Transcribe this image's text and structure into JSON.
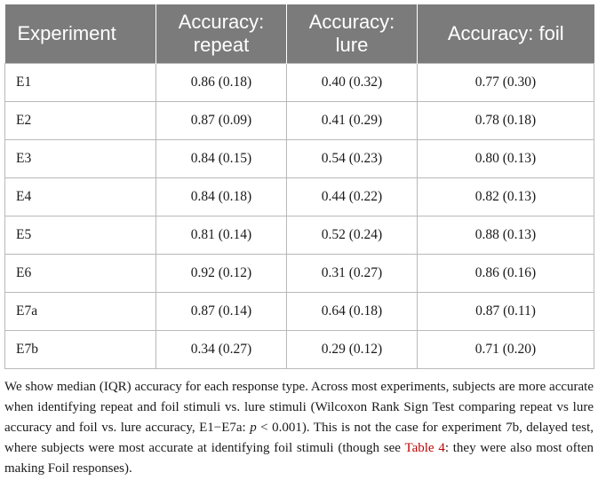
{
  "table": {
    "headers": [
      "Experiment",
      "Accuracy: repeat",
      "Accuracy: lure",
      "Accuracy: foil"
    ],
    "header_lines": [
      [
        "Experiment"
      ],
      [
        "Accuracy:",
        "repeat"
      ],
      [
        "Accuracy:",
        "lure"
      ],
      [
        "Accuracy: foil"
      ]
    ],
    "rows": [
      [
        "E1",
        "0.86 (0.18)",
        "0.40 (0.32)",
        "0.77 (0.30)"
      ],
      [
        "E2",
        "0.87 (0.09)",
        "0.41 (0.29)",
        "0.78 (0.18)"
      ],
      [
        "E3",
        "0.84 (0.15)",
        "0.54 (0.23)",
        "0.80 (0.13)"
      ],
      [
        "E4",
        "0.84 (0.18)",
        "0.44 (0.22)",
        "0.82 (0.13)"
      ],
      [
        "E5",
        "0.81 (0.14)",
        "0.52 (0.24)",
        "0.88 (0.13)"
      ],
      [
        "E6",
        "0.92 (0.12)",
        "0.31 (0.27)",
        "0.86 (0.16)"
      ],
      [
        "E7a",
        "0.87 (0.14)",
        "0.64 (0.18)",
        "0.87 (0.11)"
      ],
      [
        "E7b",
        "0.34 (0.27)",
        "0.29 (0.12)",
        "0.71 (0.20)"
      ]
    ]
  },
  "footnote": {
    "text_1": "We show median (IQR) accuracy for each response type. Across most experiments, subjects are more accurate when identifying repeat and foil stimuli vs. lure stimuli (Wilcoxon Rank Sign Test comparing repeat vs lure accuracy and foil vs. lure accuracy, E1−E7a: ",
    "p_symbol": "p",
    "text_2": " < 0.001). This is not the case for experiment 7b, delayed test, where subjects were most accurate at identifying foil stimuli (though see ",
    "link": "Table 4",
    "text_3": ": they were also most often making Foil responses)."
  },
  "colors": {
    "header_bg": "#7b7b7b",
    "header_text": "#ffffff",
    "grid": "#b9b9b9",
    "link": "#c00000"
  }
}
